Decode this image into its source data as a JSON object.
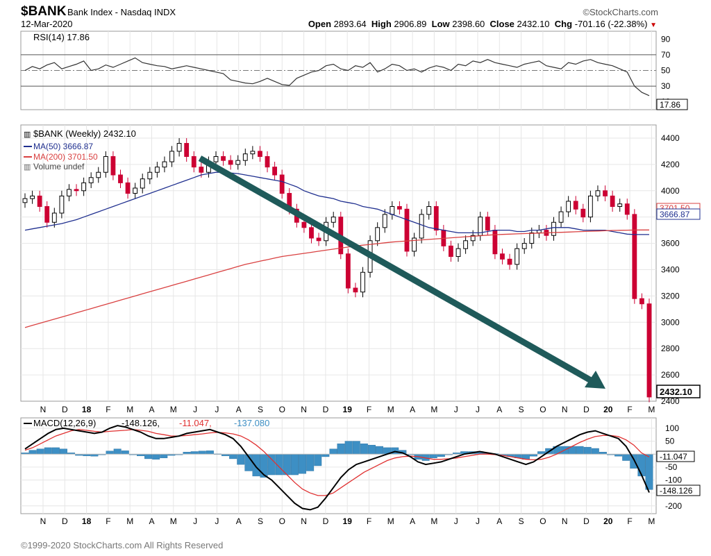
{
  "header": {
    "symbol": "$BANK",
    "description": "Bank Index - Nasdaq INDX",
    "date": "12-Mar-2020",
    "watermark": "©StockCharts.com",
    "open_label": "Open",
    "open": "2893.64",
    "high_label": "High",
    "high": "2906.89",
    "low_label": "Low",
    "low": "2398.60",
    "close_label": "Close",
    "close": "2432.10",
    "chg_label": "Chg",
    "chg": "-701.16 (-22.38%)"
  },
  "footer": "©1999-2020 StockCharts.com All Rights Reserved",
  "colors": {
    "up": "#000000",
    "down": "#cc0033",
    "ma50": "#1f2f8f",
    "ma200": "#d94040",
    "arrow": "#1f5a5a",
    "macd": "#000000",
    "signal": "#e03030",
    "hist": "#3d8fc4",
    "rsi": "#333333"
  },
  "chart_data": [
    {
      "type": "line",
      "panel": "rsi",
      "legend": "RSI(14) 17.86",
      "ylim": [
        0,
        100
      ],
      "ticks": [
        "90",
        "70",
        "50",
        "30",
        "10"
      ],
      "last_label": "17.86",
      "values": [
        50,
        55,
        52,
        57,
        60,
        52,
        55,
        58,
        62,
        50,
        52,
        57,
        54,
        58,
        62,
        66,
        60,
        58,
        56,
        55,
        52,
        54,
        56,
        54,
        52,
        50,
        48,
        46,
        38,
        36,
        34,
        33,
        36,
        40,
        36,
        32,
        31,
        40,
        44,
        48,
        50,
        56,
        58,
        52,
        50,
        56,
        54,
        60,
        48,
        52,
        58,
        56,
        50,
        52,
        48,
        53,
        56,
        54,
        50,
        58,
        56,
        62,
        60,
        64,
        60,
        58,
        56,
        54,
        58,
        60,
        62,
        56,
        54,
        52,
        60,
        58,
        62,
        64,
        60,
        58,
        56,
        52,
        48,
        30,
        22,
        17.86
      ]
    },
    {
      "type": "candlestick",
      "panel": "price",
      "legend": "$BANK (Weekly) 2432.10",
      "ma50_label": "MA(50) 3666.87",
      "ma200_label": "MA(200) 3701.50",
      "volume_label": "Volume undef",
      "ylim": [
        2400,
        4500
      ],
      "ticks": [
        "4400",
        "4200",
        "4000",
        "3800",
        "3600",
        "3400",
        "3200",
        "3000",
        "2800",
        "2600",
        "2400"
      ],
      "x_labels": [
        "N",
        "D",
        "18",
        "F",
        "M",
        "A",
        "M",
        "J",
        "J",
        "A",
        "S",
        "O",
        "N",
        "D",
        "19",
        "F",
        "M",
        "A",
        "M",
        "J",
        "J",
        "A",
        "S",
        "O",
        "N",
        "D",
        "20",
        "F",
        "M"
      ],
      "last_labels": [
        "3701.50",
        "3666.87",
        "2432.10"
      ],
      "close": [
        3940,
        3960,
        3880,
        3760,
        3830,
        3960,
        4010,
        4000,
        4060,
        4100,
        4140,
        4260,
        4120,
        4060,
        3980,
        4020,
        4090,
        4140,
        4180,
        4220,
        4300,
        4360,
        4260,
        4180,
        4140,
        4220,
        4260,
        4230,
        4200,
        4230,
        4280,
        4300,
        4260,
        4180,
        4120,
        3980,
        3860,
        3760,
        3720,
        3640,
        3620,
        3760,
        3800,
        3520,
        3260,
        3230,
        3380,
        3620,
        3720,
        3820,
        3880,
        3860,
        3540,
        3640,
        3820,
        3880,
        3700,
        3580,
        3500,
        3560,
        3620,
        3660,
        3800,
        3700,
        3520,
        3480,
        3440,
        3560,
        3600,
        3680,
        3700,
        3660,
        3760,
        3840,
        3920,
        3860,
        3800,
        3960,
        4000,
        3960,
        3880,
        3900,
        3820,
        3180,
        3140,
        2432.1
      ],
      "ma50": [
        3700,
        3710,
        3720,
        3730,
        3740,
        3750,
        3765,
        3780,
        3800,
        3820,
        3840,
        3860,
        3880,
        3900,
        3920,
        3940,
        3960,
        3980,
        4000,
        4020,
        4040,
        4060,
        4080,
        4100,
        4120,
        4130,
        4140,
        4140,
        4135,
        4130,
        4120,
        4110,
        4100,
        4090,
        4080,
        4070,
        4050,
        4030,
        4000,
        3980,
        3960,
        3950,
        3940,
        3920,
        3910,
        3900,
        3880,
        3870,
        3860,
        3840,
        3820,
        3800,
        3780,
        3760,
        3740,
        3720,
        3710,
        3700,
        3690,
        3680,
        3680,
        3680,
        3680,
        3690,
        3700,
        3700,
        3700,
        3690,
        3690,
        3700,
        3700,
        3710,
        3720,
        3720,
        3720,
        3710,
        3700,
        3700,
        3700,
        3700,
        3690,
        3680,
        3670,
        3667,
        3667,
        3666.87
      ],
      "ma200": [
        2960,
        2976,
        2992,
        3008,
        3024,
        3040,
        3056,
        3072,
        3088,
        3104,
        3120,
        3136,
        3152,
        3168,
        3184,
        3200,
        3216,
        3232,
        3248,
        3264,
        3280,
        3296,
        3312,
        3328,
        3344,
        3360,
        3376,
        3392,
        3408,
        3424,
        3440,
        3452,
        3464,
        3476,
        3488,
        3500,
        3508,
        3516,
        3524,
        3532,
        3540,
        3548,
        3556,
        3564,
        3572,
        3580,
        3586,
        3592,
        3598,
        3604,
        3610,
        3614,
        3618,
        3622,
        3626,
        3630,
        3634,
        3638,
        3642,
        3646,
        3650,
        3654,
        3658,
        3662,
        3666,
        3668,
        3670,
        3672,
        3674,
        3676,
        3678,
        3680,
        3682,
        3684,
        3686,
        3688,
        3690,
        3692,
        3694,
        3696,
        3698,
        3699,
        3700,
        3701,
        3701.5,
        3701.5
      ]
    },
    {
      "type": "line",
      "panel": "macd",
      "legend_name": "MACD(12,26,9)",
      "macd_value": "-148.126",
      "signal_value": "-11.047",
      "hist_value": "-137.080",
      "ylim": [
        -230,
        140
      ],
      "ticks": [
        "100",
        "50",
        "0",
        "-50",
        "-100",
        "-150",
        "-200"
      ],
      "last_labels": [
        "-11.047",
        "-148.126"
      ],
      "macd": [
        20,
        40,
        60,
        80,
        95,
        100,
        95,
        90,
        85,
        80,
        85,
        100,
        110,
        105,
        95,
        85,
        70,
        60,
        60,
        65,
        70,
        80,
        85,
        90,
        95,
        85,
        75,
        60,
        30,
        -10,
        -50,
        -80,
        -100,
        -130,
        -160,
        -190,
        -210,
        -215,
        -205,
        -170,
        -130,
        -90,
        -60,
        -40,
        -30,
        -20,
        -10,
        0,
        10,
        5,
        -10,
        -30,
        -40,
        -35,
        -30,
        -20,
        -10,
        0,
        5,
        10,
        5,
        0,
        -10,
        -20,
        -30,
        -40,
        -30,
        -10,
        10,
        30,
        45,
        60,
        75,
        85,
        90,
        80,
        70,
        60,
        30,
        -20,
        -80,
        -148.126
      ],
      "signal": [
        15,
        25,
        40,
        55,
        70,
        80,
        90,
        95,
        92,
        88,
        85,
        88,
        90,
        92,
        95,
        92,
        88,
        80,
        75,
        70,
        70,
        72,
        75,
        78,
        82,
        84,
        82,
        78,
        70,
        55,
        35,
        10,
        -20,
        -50,
        -80,
        -110,
        -135,
        -150,
        -160,
        -160,
        -150,
        -130,
        -110,
        -90,
        -70,
        -55,
        -40,
        -25,
        -15,
        -10,
        -8,
        -10,
        -15,
        -20,
        -20,
        -18,
        -15,
        -10,
        -5,
        0,
        0,
        -2,
        -5,
        -10,
        -15,
        -20,
        -22,
        -20,
        -12,
        0,
        15,
        30,
        45,
        58,
        68,
        72,
        72,
        68,
        55,
        35,
        5,
        -11.047
      ],
      "histogram": [
        5,
        15,
        20,
        25,
        25,
        20,
        5,
        -5,
        -7,
        -8,
        0,
        12,
        20,
        13,
        0,
        -7,
        -18,
        -20,
        -15,
        -5,
        0,
        8,
        10,
        12,
        13,
        1,
        -7,
        -18,
        -40,
        -65,
        -85,
        -90,
        -80,
        -80,
        -80,
        -80,
        -75,
        -65,
        -45,
        -10,
        20,
        40,
        50,
        50,
        40,
        35,
        30,
        25,
        25,
        15,
        -2,
        -20,
        -25,
        -15,
        -10,
        -2,
        5,
        10,
        10,
        10,
        5,
        2,
        -5,
        -10,
        -15,
        -20,
        -8,
        10,
        22,
        30,
        30,
        30,
        30,
        27,
        22,
        8,
        -2,
        -8,
        -25,
        -55,
        -85,
        -137.08
      ],
      "x_labels": [
        "N",
        "D",
        "18",
        "F",
        "M",
        "A",
        "M",
        "J",
        "J",
        "A",
        "S",
        "O",
        "N",
        "D",
        "19",
        "F",
        "M",
        "A",
        "M",
        "J",
        "J",
        "A",
        "S",
        "O",
        "N",
        "D",
        "20",
        "F",
        "M"
      ]
    }
  ]
}
